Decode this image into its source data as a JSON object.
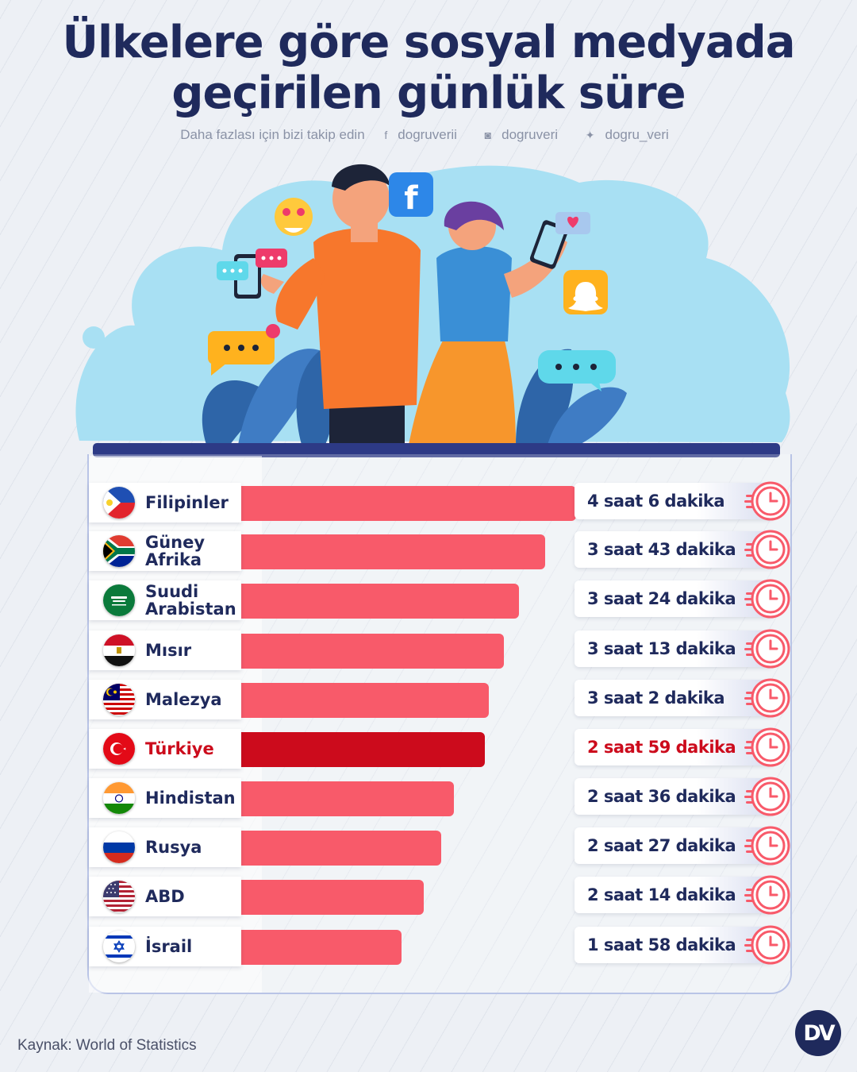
{
  "title_line1": "Ülkelere göre sosyal medyada",
  "title_line2": "geçirilen günlük süre",
  "social": {
    "cta": "Daha fazlası için bizi takip edin",
    "facebook": "dogruverii",
    "instagram": "dogruveri",
    "twitter": "dogru_veri"
  },
  "source": "Kaynak: World of Statistics",
  "logo": "DV",
  "colors": {
    "bar": "#f85a6a",
    "highlight": "#cc0b1c",
    "text": "#1f2a5c"
  },
  "chart_data": {
    "type": "bar",
    "orientation": "horizontal",
    "unit": "minutes",
    "title": "Ülkelere göre sosyal medyada geçirilen günlük süre",
    "highlight": "Türkiye",
    "rows": [
      {
        "country": "Filipinler",
        "flag": "philippines-flag",
        "minutes": 246,
        "label": "4 saat 6 dakika"
      },
      {
        "country": "Güney Afrika",
        "flag": "south-africa-flag",
        "minutes": 223,
        "label": "3 saat 43 dakika"
      },
      {
        "country": "Suudi Arabistan",
        "flag": "saudi-arabia-flag",
        "minutes": 204,
        "label": "3 saat 24 dakika"
      },
      {
        "country": "Mısır",
        "flag": "egypt-flag",
        "minutes": 193,
        "label": "3 saat 13 dakika"
      },
      {
        "country": "Malezya",
        "flag": "malaysia-flag",
        "minutes": 182,
        "label": "3 saat 2 dakika"
      },
      {
        "country": "Türkiye",
        "flag": "turkey-flag",
        "minutes": 179,
        "label": "2 saat 59 dakika"
      },
      {
        "country": "Hindistan",
        "flag": "india-flag",
        "minutes": 156,
        "label": "2 saat 36 dakika"
      },
      {
        "country": "Rusya",
        "flag": "russia-flag",
        "minutes": 147,
        "label": "2 saat 27 dakika"
      },
      {
        "country": "ABD",
        "flag": "usa-flag",
        "minutes": 134,
        "label": "2 saat 14 dakika"
      },
      {
        "country": "İsrail",
        "flag": "israel-flag",
        "minutes": 118,
        "label": "1 saat 58 dakika"
      }
    ]
  }
}
